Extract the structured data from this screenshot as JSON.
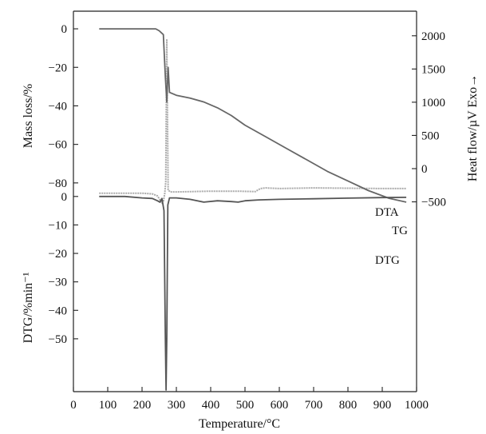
{
  "chart_data": [
    {
      "type": "line",
      "panel": "upper",
      "xlabel": "Temperature/°C",
      "ylabel_left": "Mass loss/%",
      "ylabel_right": "Heat flow/µV  Exo→",
      "x_ticks": [
        "0",
        "100",
        "200",
        "300",
        "400",
        "500",
        "600",
        "700",
        "800",
        "900",
        "1000"
      ],
      "xlim": [
        0,
        1000
      ],
      "y_left_ticks": [
        "0",
        "−20",
        "−40",
        "−60",
        "−80"
      ],
      "y_left_values": [
        0,
        -20,
        -40,
        -60,
        -80
      ],
      "y_left_lim": [
        -95,
        5
      ],
      "y_right_ticks": [
        "2000",
        "1500",
        "1000",
        "500",
        "0",
        "−500"
      ],
      "y_right_values": [
        2000,
        1500,
        1000,
        500,
        0,
        -500
      ],
      "y_right_lim": [
        -650,
        2250
      ],
      "grid": false,
      "series": [
        {
          "name": "TG",
          "axis": "left",
          "color": "#666666",
          "x": [
            75,
            150,
            200,
            240,
            250,
            262,
            268,
            272,
            276,
            280,
            300,
            340,
            380,
            420,
            460,
            500,
            560,
            620,
            680,
            740,
            800,
            860,
            920,
            970
          ],
          "y": [
            0,
            0,
            0,
            0,
            -1,
            -3,
            -25,
            -38,
            -20,
            -33,
            -34.5,
            -36,
            -38,
            -41,
            -45,
            -50,
            -56,
            -62,
            -68,
            -74,
            -79,
            -84,
            -88,
            -90
          ]
        },
        {
          "name": "DTA",
          "axis": "right",
          "color": "#aaaaaa",
          "x": [
            75,
            150,
            200,
            230,
            245,
            252,
            258,
            262,
            266,
            269,
            272,
            276,
            282,
            300,
            400,
            480,
            530,
            545,
            560,
            600,
            700,
            800,
            900,
            970
          ],
          "y": [
            -370,
            -370,
            -370,
            -380,
            -410,
            -470,
            -520,
            -490,
            -380,
            -200,
            1950,
            -320,
            -350,
            -350,
            -340,
            -340,
            -345,
            -300,
            -290,
            -300,
            -290,
            -295,
            -300,
            -300
          ]
        }
      ]
    },
    {
      "type": "line",
      "panel": "lower",
      "xlabel": "Temperature/°C",
      "ylabel": "DTG/%min⁻¹",
      "x_ticks": [
        "0",
        "100",
        "200",
        "300",
        "400",
        "500",
        "600",
        "700",
        "800",
        "900",
        "1000"
      ],
      "xlim": [
        0,
        1000
      ],
      "y_ticks": [
        "0",
        "−10",
        "−20",
        "−30",
        "−40",
        "−50"
      ],
      "y_values": [
        0,
        -10,
        -20,
        -30,
        -40,
        -50
      ],
      "ylim": [
        -68,
        5
      ],
      "grid": false,
      "series": [
        {
          "name": "DTG",
          "color": "#555555",
          "x": [
            75,
            150,
            200,
            230,
            245,
            252,
            258,
            264,
            268,
            270,
            272,
            275,
            280,
            300,
            340,
            380,
            420,
            460,
            480,
            500,
            540,
            600,
            700,
            800,
            900,
            970
          ],
          "y": [
            0,
            0,
            -0.5,
            -0.7,
            -1.5,
            -2,
            -0.7,
            -5,
            -50,
            -68,
            -50,
            -3,
            -0.5,
            -0.5,
            -1,
            -2,
            -1.5,
            -1.8,
            -2,
            -1.5,
            -1.2,
            -1,
            -0.8,
            -0.6,
            -0.4,
            -0.3
          ]
        }
      ]
    }
  ]
}
